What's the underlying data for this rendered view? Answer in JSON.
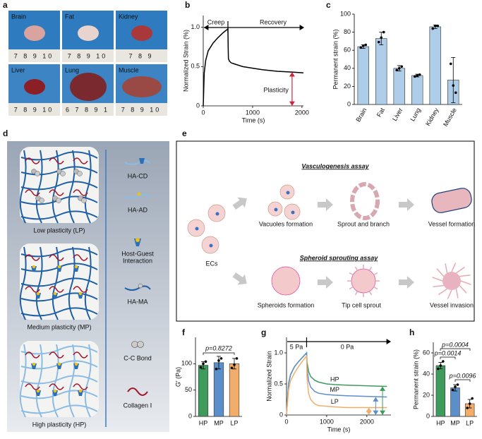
{
  "panel_labels": [
    "a",
    "b",
    "c",
    "d",
    "e",
    "f",
    "g",
    "h"
  ],
  "panel_a": {
    "tiles": [
      {
        "label": "Brain",
        "ruler": "7 8 9 10"
      },
      {
        "label": "Fat",
        "ruler": "7 8 9 10"
      },
      {
        "label": "Kidney",
        "ruler": "7 8 9"
      },
      {
        "label": "Liver",
        "ruler": "7 8 9 10"
      },
      {
        "label": "Lung",
        "ruler": "6 7 8 9 1"
      },
      {
        "label": "Muscle",
        "ruler": "7 8 9 10"
      }
    ]
  },
  "panel_d": {
    "states": [
      "Low plasticity (LP)",
      "Medium plasticity (MP)",
      "High plasticity (HP)"
    ],
    "legend": [
      "HA-CD",
      "HA-AD",
      [
        "Host-Guest",
        "Interaction"
      ],
      "HA-MA",
      "C-C Bond",
      "Collagen Ⅰ"
    ]
  },
  "panel_e": {
    "cells": "ECs",
    "vasculogenesis": {
      "title": "Vasculogenesis assay",
      "steps": [
        "Vacuoles formation",
        "Sprout and branch",
        "Vessel formation"
      ]
    },
    "spheroid": {
      "title": "Spheroid sprouting assay",
      "steps": [
        "Spheroids formation",
        "Tip cell sprout",
        "Vessel invasion"
      ]
    }
  },
  "chart_data": [
    {
      "type": "line",
      "xlabel": "Time (s)",
      "ylabel": "Normalized Strain (%)",
      "x": [
        0,
        20,
        50,
        100,
        200,
        300,
        400,
        500,
        505,
        510,
        530,
        560,
        600,
        700,
        800,
        1000,
        1200,
        1500,
        1800,
        2030
      ],
      "series": [
        {
          "color": "#000000",
          "values": [
            0,
            0.42,
            0.58,
            0.7,
            0.8,
            0.87,
            0.93,
            0.98,
            0.75,
            0.6,
            0.57,
            0.55,
            0.54,
            0.52,
            0.5,
            0.48,
            0.46,
            0.44,
            0.43,
            0.42
          ]
        }
      ],
      "xlim": [
        0,
        2030
      ],
      "ylim": [
        0,
        1.15
      ],
      "xticks": [
        0,
        1000,
        2000
      ],
      "yticks": [
        0,
        0.5,
        {
          "value": 1,
          "label": "1.0"
        }
      ],
      "annotations": [
        "Creep",
        "Recovery",
        "Plasticity"
      ]
    },
    {
      "type": "bar",
      "ylabel": "Permanent strain (%)",
      "categories": [
        "Brain",
        "Fat",
        "Liver",
        "Lung",
        "Kidney",
        "Muscle"
      ],
      "values": [
        64,
        73,
        40,
        32,
        86,
        27
      ],
      "errors": [
        2,
        7,
        3,
        1.5,
        2,
        25
      ],
      "points": [
        [
          63,
          65,
          66
        ],
        [
          69,
          74,
          80
        ],
        [
          38,
          40,
          42
        ],
        [
          31,
          32,
          33
        ],
        [
          84,
          87,
          87
        ],
        [
          45,
          21,
          13
        ]
      ],
      "color": "#aecde9",
      "ylim": [
        0,
        100
      ],
      "yticks": [
        0,
        20,
        40,
        60,
        80,
        100
      ]
    },
    {
      "type": "bar",
      "ylabel": "G′ (Pa)",
      "categories": [
        "HP",
        "MP",
        "LP"
      ],
      "values": [
        97,
        102,
        100
      ],
      "errors": [
        7,
        12,
        10
      ],
      "points": [
        [
          93,
          100,
          104
        ],
        [
          90,
          106,
          110
        ],
        [
          92,
          98,
          110
        ]
      ],
      "colors": [
        "#3e9b5c",
        "#5b8fc9",
        "#f3ad6a"
      ],
      "ylim": [
        0,
        150
      ],
      "yticks": [
        0,
        50,
        100
      ],
      "annotations": [
        "p=0.8272"
      ]
    },
    {
      "type": "line",
      "xlabel": "Time (s)",
      "ylabel": "Normalized Strain",
      "x": [
        0,
        50,
        100,
        200,
        300,
        400,
        500,
        510,
        550,
        600,
        700,
        800,
        1000,
        1200,
        1500,
        2000,
        2500
      ],
      "series": [
        {
          "name": "HP",
          "color": "#3e9b5c",
          "values": [
            0,
            0.5,
            0.65,
            0.78,
            0.86,
            0.93,
            1.0,
            0.85,
            0.7,
            0.62,
            0.56,
            0.53,
            0.5,
            0.49,
            0.48,
            0.47,
            0.46
          ]
        },
        {
          "name": "MP",
          "color": "#5b8fc9",
          "values": [
            0,
            0.5,
            0.65,
            0.78,
            0.86,
            0.93,
            1.0,
            0.75,
            0.55,
            0.45,
            0.38,
            0.35,
            0.33,
            0.32,
            0.31,
            0.3,
            0.29
          ]
        },
        {
          "name": "LP",
          "color": "#f3ad6a",
          "values": [
            0,
            0.4,
            0.55,
            0.68,
            0.78,
            0.87,
            0.95,
            0.6,
            0.35,
            0.25,
            0.18,
            0.15,
            0.14,
            0.13,
            0.12,
            0.12,
            0.12
          ]
        }
      ],
      "xlim": [
        0,
        2600
      ],
      "ylim": [
        0,
        1.25
      ],
      "xticks": [
        0,
        1000,
        2000
      ],
      "yticks": [
        0,
        0.5,
        {
          "value": 1,
          "label": "1.0"
        }
      ],
      "annotations": [
        "5 Pa",
        "0 Pa"
      ]
    },
    {
      "type": "bar",
      "ylabel": "Permanent strain (%)",
      "categories": [
        "HP",
        "MP",
        "LP"
      ],
      "values": [
        48,
        27,
        12
      ],
      "errors": [
        3,
        3,
        4
      ],
      "points": [
        [
          45,
          48,
          52
        ],
        [
          25,
          28,
          30
        ],
        [
          8,
          12,
          17
        ]
      ],
      "colors": [
        "#3e9b5c",
        "#5b8fc9",
        "#f3ad6a"
      ],
      "ylim": [
        0,
        70
      ],
      "yticks": [
        0,
        20,
        40,
        60
      ],
      "annotations": [
        "p=0.0004",
        "p=0.0014",
        "p=0.0096"
      ]
    }
  ]
}
